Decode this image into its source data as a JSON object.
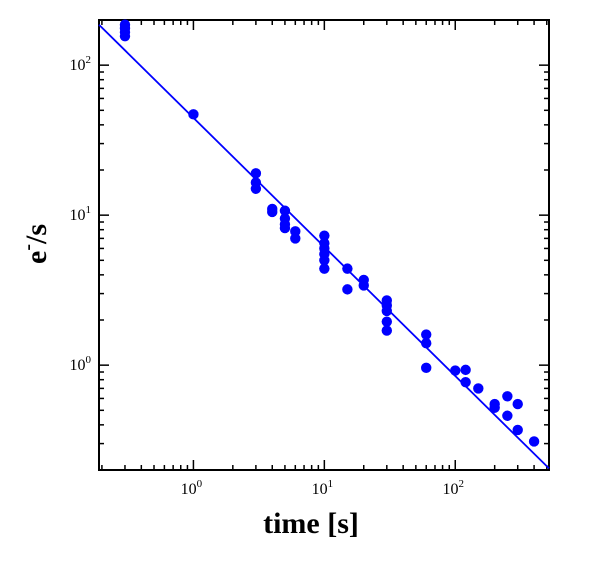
{
  "chart_data": {
    "type": "scatter",
    "xlabel": "time [s]",
    "ylabel_main": "e",
    "ylabel_sup": "-",
    "ylabel_tail": "/s",
    "xscale": "log",
    "yscale": "log",
    "xlim": [
      0.19,
      520
    ],
    "ylim": [
      0.2,
      200
    ],
    "x_ticks": [
      {
        "value": 1,
        "base": "10",
        "exp": "0"
      },
      {
        "value": 10,
        "base": "10",
        "exp": "1"
      },
      {
        "value": 100,
        "base": "10",
        "exp": "2"
      }
    ],
    "y_ticks": [
      {
        "value": 1,
        "base": "10",
        "exp": "0"
      },
      {
        "value": 10,
        "base": "10",
        "exp": "1"
      },
      {
        "value": 100,
        "base": "10",
        "exp": "2"
      }
    ],
    "grid": false,
    "marker_color": "#0000ff",
    "line_color": "#0000ff",
    "points": [
      [
        0.3,
        186
      ],
      [
        0.3,
        176
      ],
      [
        0.3,
        166
      ],
      [
        0.3,
        156
      ],
      [
        1.0,
        47
      ],
      [
        3.0,
        19
      ],
      [
        3.0,
        16.5
      ],
      [
        3.0,
        15
      ],
      [
        4.0,
        11
      ],
      [
        4.0,
        10.5
      ],
      [
        5.0,
        10.7
      ],
      [
        5.0,
        9.5
      ],
      [
        5.0,
        8.7
      ],
      [
        5.0,
        8.2
      ],
      [
        6.0,
        7.8
      ],
      [
        6.0,
        7.0
      ],
      [
        10.0,
        7.3
      ],
      [
        10.0,
        6.5
      ],
      [
        10.0,
        6.0
      ],
      [
        10.0,
        5.5
      ],
      [
        10.0,
        5.0
      ],
      [
        10.0,
        4.4
      ],
      [
        15.0,
        4.4
      ],
      [
        15.0,
        3.2
      ],
      [
        20.0,
        3.7
      ],
      [
        20.0,
        3.4
      ],
      [
        30.0,
        2.7
      ],
      [
        30.0,
        2.5
      ],
      [
        30.0,
        2.3
      ],
      [
        30.0,
        1.95
      ],
      [
        30.0,
        1.7
      ],
      [
        60.0,
        1.6
      ],
      [
        60.0,
        1.4
      ],
      [
        60.0,
        0.96
      ],
      [
        100.0,
        0.92
      ],
      [
        120.0,
        0.93
      ],
      [
        120.0,
        0.77
      ],
      [
        150.0,
        0.7
      ],
      [
        200.0,
        0.55
      ],
      [
        200.0,
        0.52
      ],
      [
        250.0,
        0.62
      ],
      [
        250.0,
        0.46
      ],
      [
        300.0,
        0.55
      ],
      [
        300.0,
        0.37
      ],
      [
        400.0,
        0.31
      ]
    ],
    "fit_line": {
      "x": [
        0.19,
        520
      ],
      "y": [
        186,
        0.205
      ]
    }
  }
}
